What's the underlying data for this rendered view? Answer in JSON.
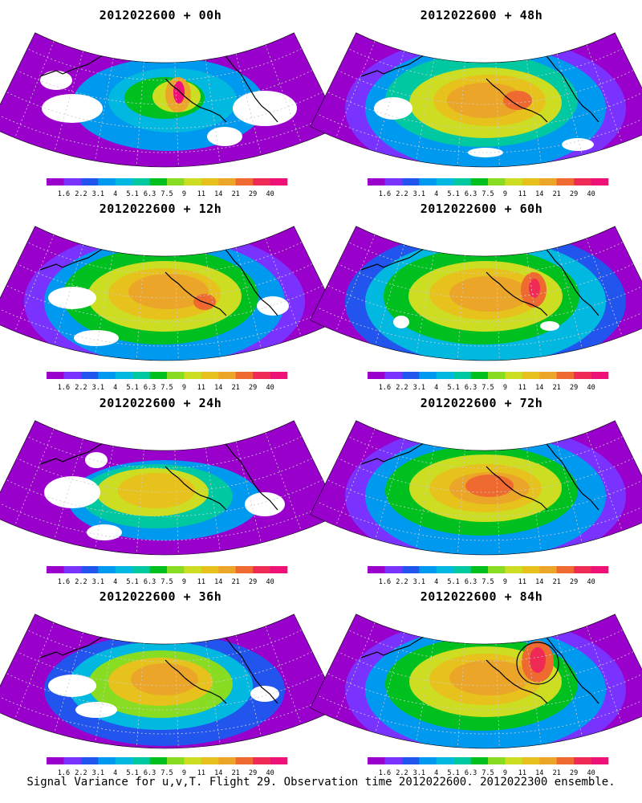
{
  "panels": [
    {
      "title": "2012022600  + 00h",
      "lead": "00h"
    },
    {
      "title": "2012022600  + 48h",
      "lead": "48h"
    },
    {
      "title": "2012022600  + 12h",
      "lead": "12h"
    },
    {
      "title": "2012022600  + 60h",
      "lead": "60h"
    },
    {
      "title": "2012022600  + 24h",
      "lead": "24h"
    },
    {
      "title": "2012022600  + 72h",
      "lead": "72h"
    },
    {
      "title": "2012022600  + 36h",
      "lead": "36h"
    },
    {
      "title": "2012022600  + 84h",
      "lead": "84h"
    }
  ],
  "colorbar": {
    "labels": [
      "1.6",
      "2.2",
      "3.1",
      "4",
      "5.1",
      "6.3",
      "7.5",
      "9",
      "11",
      "14",
      "21",
      "29",
      "40"
    ],
    "colors": [
      "#9900cc",
      "#7a33ff",
      "#2255ee",
      "#0099f0",
      "#00b8e0",
      "#00c8a0",
      "#00c020",
      "#88dd22",
      "#ccdd22",
      "#e8c21c",
      "#eba528",
      "#ee6a30",
      "#ee2a55",
      "#ee1177"
    ]
  },
  "footer": "Signal Variance for u,v,T. Flight 29. Observation time 2012022600. 2012022300 ensemble."
}
